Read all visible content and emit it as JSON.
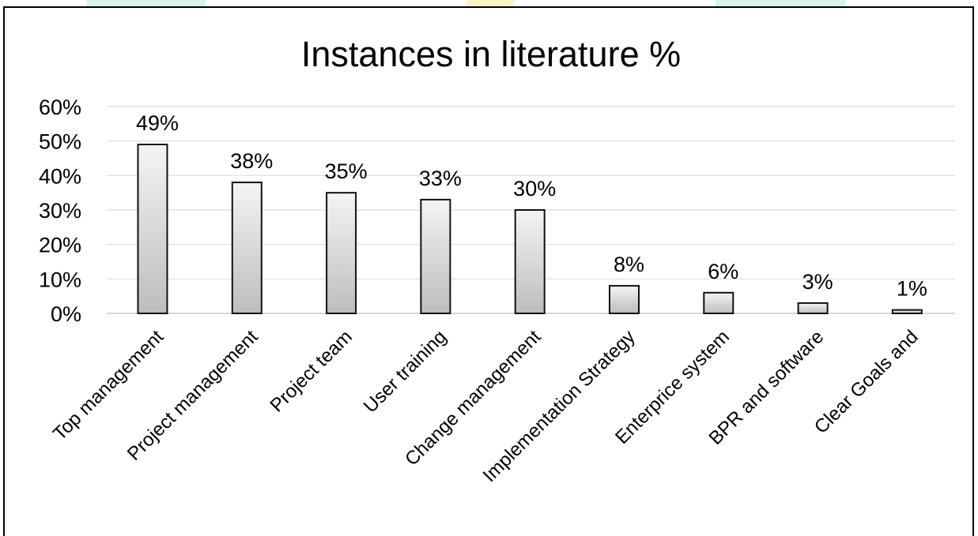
{
  "chart_data": {
    "type": "bar",
    "title": "Instances in literature %",
    "xlabel": "",
    "ylabel": "",
    "categories": [
      "Top management",
      "Project management",
      "Project team",
      "User training",
      "Change management",
      "Implementation Strategy",
      "Enterprice system",
      "BPR and software",
      "Clear Goals and"
    ],
    "values": [
      49,
      38,
      35,
      33,
      30,
      8,
      6,
      3,
      1
    ],
    "value_labels": [
      "49%",
      "38%",
      "35%",
      "33%",
      "30%",
      "8%",
      "6%",
      "3%",
      "1%"
    ],
    "y_ticks": [
      0,
      10,
      20,
      30,
      40,
      50,
      60
    ],
    "y_tick_labels": [
      "0%",
      "10%",
      "20%",
      "30%",
      "40%",
      "50%",
      "60%"
    ],
    "ylim": [
      0,
      60
    ],
    "grid": true,
    "legend": "none",
    "colors": {
      "bar_top": "#f4f4f4",
      "bar_bottom": "#bdbdbd",
      "bar_stroke": "#111111",
      "grid": "#dcdcdc",
      "text": "#000000",
      "top_strip_teal": "#d8f3ef",
      "top_strip_yellow": "#fff2c4"
    }
  }
}
